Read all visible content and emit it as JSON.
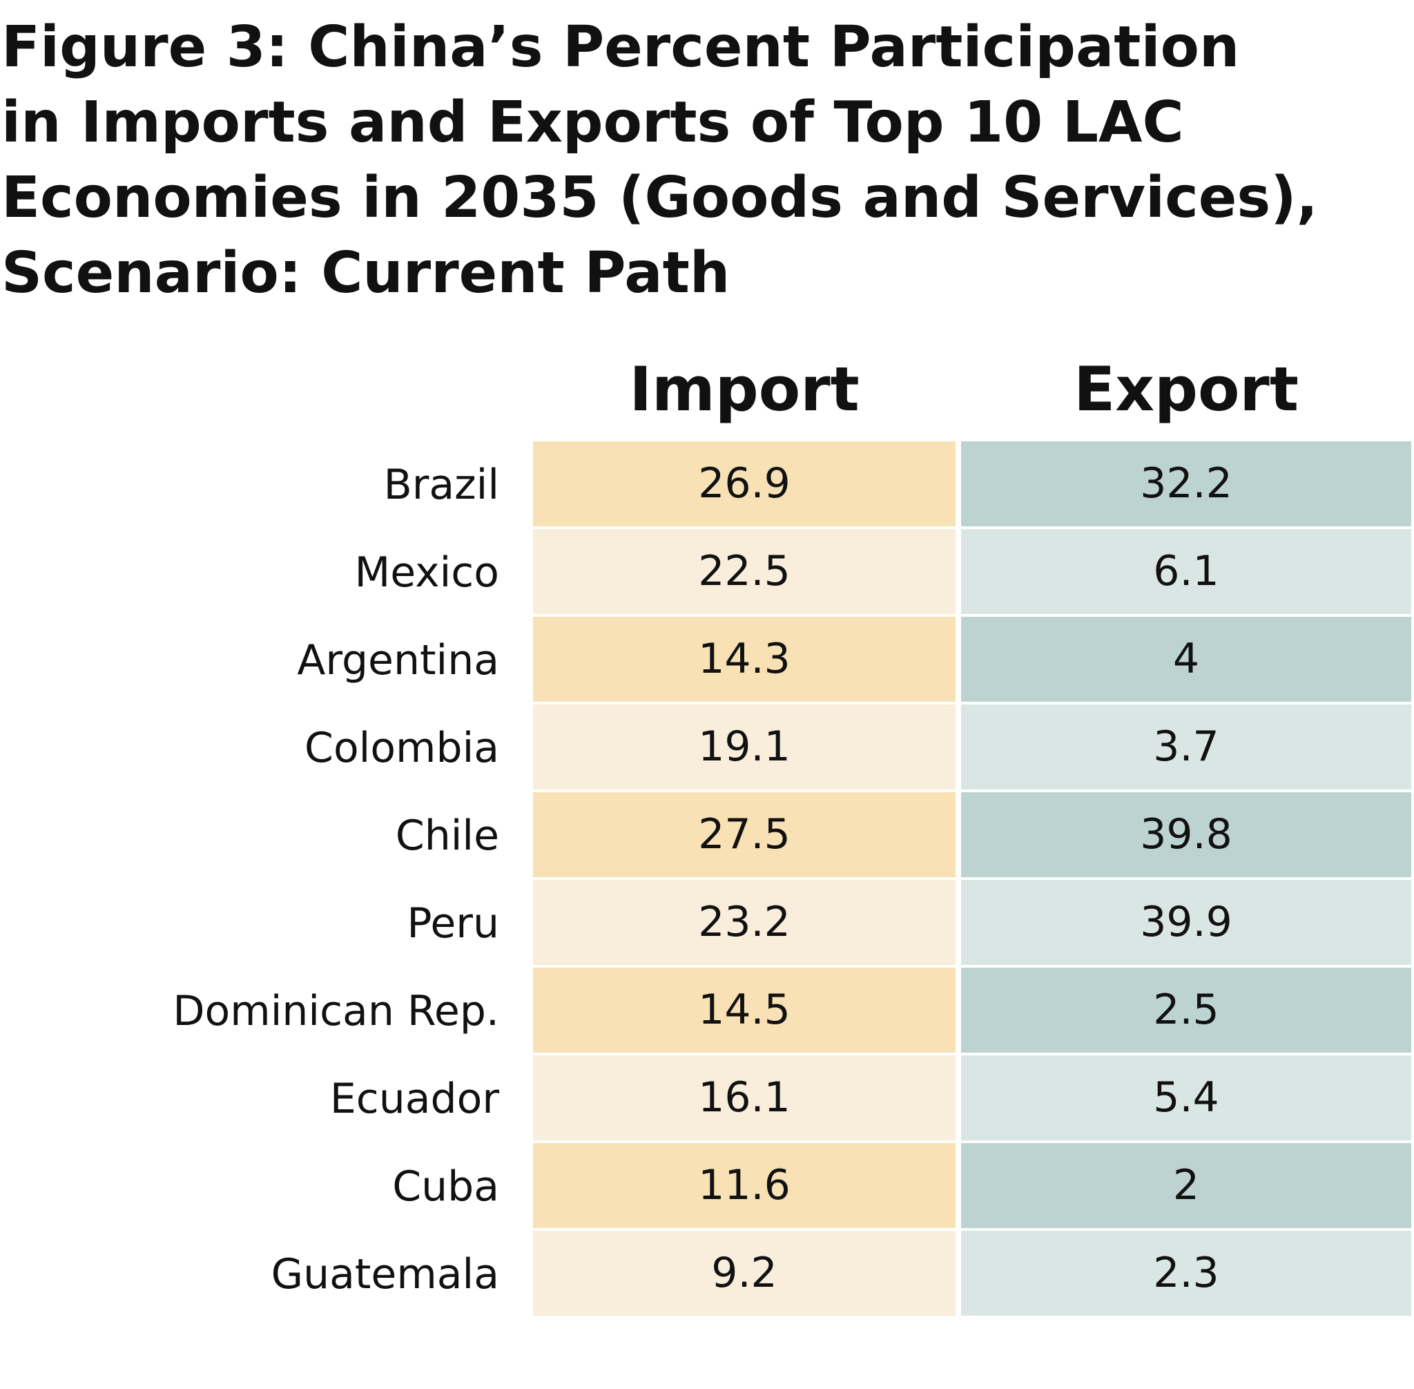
{
  "header": {
    "title": [
      "Figure 3: China’s Percent Participation",
      "in Imports and Exports of Top 10 LAC",
      "Economies in 2035 (Goods and Services),",
      "Scenario: Current Path"
    ]
  },
  "table": {
    "columns": [
      "Import",
      "Export"
    ],
    "rows": [
      [
        "Brazil",
        26.9,
        32.2
      ],
      [
        "Mexico",
        22.5,
        6.1
      ],
      [
        "Argentina",
        14.3,
        4
      ],
      [
        "Colombia",
        19.1,
        3.7
      ],
      [
        "Chile",
        27.5,
        39.8
      ],
      [
        "Peru",
        23.2,
        39.9
      ],
      [
        "Dominican Rep.",
        14.5,
        2.5
      ],
      [
        "Ecuador",
        16.1,
        5.4
      ],
      [
        "Cuba",
        11.6,
        2
      ],
      [
        "Guatemala",
        9.2,
        2.3
      ]
    ]
  }
}
